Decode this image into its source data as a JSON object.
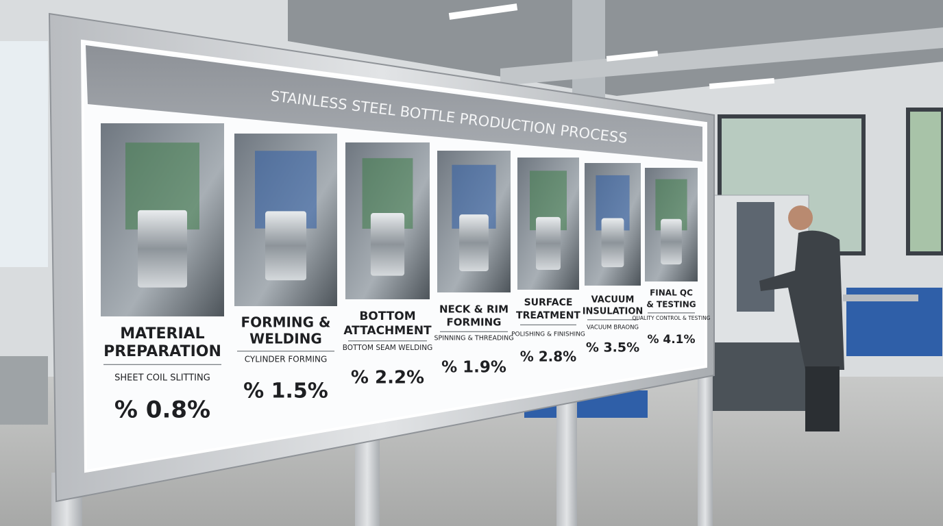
{
  "title": "STAINLESS STEEL BOTTLE PRODUCTION PROCESS",
  "steps": [
    {
      "name": [
        "MATERIAL",
        "PREPARATION"
      ],
      "detail": "SHEET COIL SLITTING",
      "rate": "% 0.8%"
    },
    {
      "name": [
        "FORMING &",
        "WELDING"
      ],
      "detail": "CYLINDER FORMING",
      "rate": "% 1.5%"
    },
    {
      "name": [
        "BOTTOM",
        "ATTACHMENT"
      ],
      "detail": "BOTTOM SEAM WELDING",
      "rate": "% 2.2%"
    },
    {
      "name": [
        "NECK & RIM",
        "FORMING"
      ],
      "detail": "SPINNING & THREADING",
      "rate": "% 1.9%"
    },
    {
      "name": [
        "SURFACE",
        "TREATMENT"
      ],
      "detail": "POLISHING & FINISHING",
      "rate": "% 2.8%"
    },
    {
      "name": [
        "VACUUM",
        "INSULATION"
      ],
      "detail": "VACUUM BRAONG",
      "rate": "% 3.5%"
    },
    {
      "name": [
        "FINAL QC",
        "& TESTING"
      ],
      "detail": "QUALITY CONTROL & TESTING",
      "rate": "% 4.1%"
    }
  ]
}
